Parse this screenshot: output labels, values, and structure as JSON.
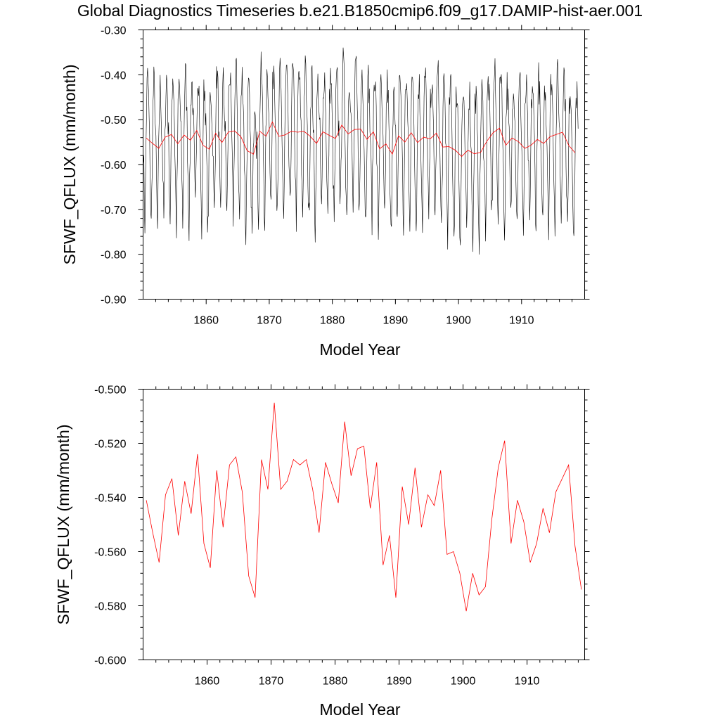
{
  "title": "Global Diagnostics Timeseries b.e21.B1850cmip6.f09_g17.DAMIP-hist-aer.001",
  "colors": {
    "monthly": "#000000",
    "annual": "#ff0000"
  },
  "chart_data": [
    {
      "type": "line",
      "xlabel": "Model Year",
      "ylabel": "SFWF_QFLUX (mm/month)",
      "xlim": [
        1850,
        1920
      ],
      "ylim": [
        -0.9,
        -0.3
      ],
      "xticks": [
        1860,
        1870,
        1880,
        1890,
        1900,
        1910
      ],
      "xtick_labels": [
        "1860",
        "1870",
        "1880",
        "1890",
        "1900",
        "1910"
      ],
      "yticks": [
        -0.9,
        -0.8,
        -0.7,
        -0.6,
        -0.5,
        -0.4,
        -0.3
      ],
      "ytick_labels": [
        "-0.90",
        "-0.80",
        "-0.70",
        "-0.60",
        "-0.50",
        "-0.40",
        "-0.30"
      ],
      "grid": false,
      "series": [
        {
          "color": "#000000",
          "note_resolution": "monthly",
          "monthly_cycle": [
            -0.56,
            -0.62,
            -0.68,
            -0.72,
            -0.66,
            -0.57,
            -0.49,
            -0.45,
            -0.43,
            -0.44,
            -0.47,
            -0.52
          ]
        },
        {
          "color": "#ff0000",
          "note_resolution": "annual"
        }
      ]
    },
    {
      "type": "line",
      "xlabel": "Model Year",
      "ylabel": "SFWF_QFLUX (mm/month)",
      "xlim": [
        1850,
        1919
      ],
      "ylim": [
        -0.6,
        -0.5
      ],
      "xticks": [
        1860,
        1870,
        1880,
        1890,
        1900,
        1910
      ],
      "xtick_labels": [
        "1860",
        "1870",
        "1880",
        "1890",
        "1900",
        "1910"
      ],
      "yticks": [
        -0.6,
        -0.58,
        -0.56,
        -0.54,
        -0.52,
        -0.5
      ],
      "ytick_labels": [
        "-0.600",
        "-0.580",
        "-0.560",
        "-0.540",
        "-0.520",
        "-0.500"
      ],
      "grid": false,
      "series": [
        {
          "color": "#ff0000",
          "x": [
            1850.5,
            1851.5,
            1852.5,
            1853.5,
            1854.5,
            1855.5,
            1856.5,
            1857.5,
            1858.5,
            1859.5,
            1860.5,
            1861.5,
            1862.5,
            1863.5,
            1864.5,
            1865.5,
            1866.5,
            1867.5,
            1868.5,
            1869.5,
            1870.5,
            1871.5,
            1872.5,
            1873.5,
            1874.5,
            1875.5,
            1876.5,
            1877.5,
            1878.5,
            1879.5,
            1880.5,
            1881.5,
            1882.5,
            1883.5,
            1884.5,
            1885.5,
            1886.5,
            1887.5,
            1888.5,
            1889.5,
            1890.5,
            1891.5,
            1892.5,
            1893.5,
            1894.5,
            1895.5,
            1896.5,
            1897.5,
            1898.5,
            1899.5,
            1900.5,
            1901.5,
            1902.5,
            1903.5,
            1904.5,
            1905.5,
            1906.5,
            1907.5,
            1908.5,
            1909.5,
            1910.5,
            1911.5,
            1912.5,
            1913.5,
            1914.5,
            1915.5,
            1916.5,
            1917.5,
            1918.5
          ],
          "values": [
            -0.541,
            -0.553,
            -0.564,
            -0.539,
            -0.533,
            -0.554,
            -0.534,
            -0.546,
            -0.524,
            -0.557,
            -0.566,
            -0.53,
            -0.551,
            -0.528,
            -0.525,
            -0.538,
            -0.569,
            -0.577,
            -0.526,
            -0.537,
            -0.505,
            -0.537,
            -0.534,
            -0.526,
            -0.528,
            -0.526,
            -0.537,
            -0.553,
            -0.527,
            -0.535,
            -0.542,
            -0.512,
            -0.532,
            -0.522,
            -0.521,
            -0.544,
            -0.527,
            -0.565,
            -0.554,
            -0.577,
            -0.536,
            -0.55,
            -0.529,
            -0.551,
            -0.539,
            -0.543,
            -0.53,
            -0.561,
            -0.56,
            -0.568,
            -0.582,
            -0.568,
            -0.576,
            -0.573,
            -0.548,
            -0.529,
            -0.519,
            -0.557,
            -0.541,
            -0.549,
            -0.564,
            -0.557,
            -0.544,
            -0.553,
            -0.538,
            -0.533,
            -0.528,
            -0.558,
            -0.574
          ]
        }
      ]
    }
  ]
}
